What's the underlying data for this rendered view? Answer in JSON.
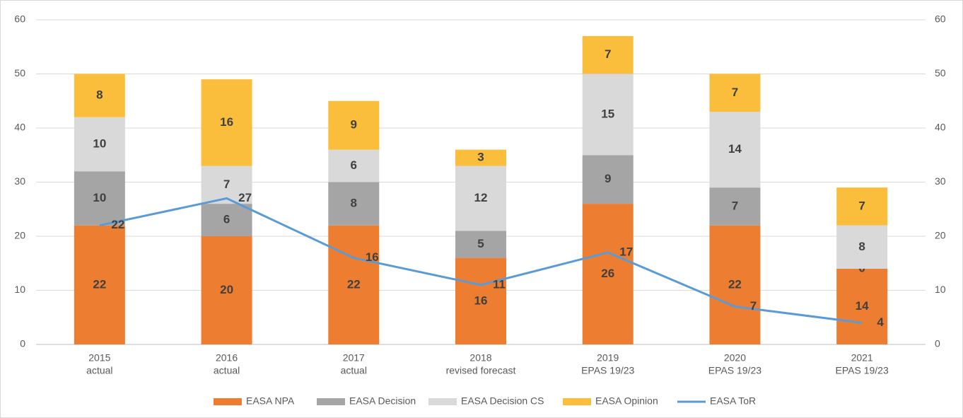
{
  "chart_data": {
    "type": "stacked-bar-line",
    "categories": [
      [
        "2015",
        "actual"
      ],
      [
        "2016",
        "actual"
      ],
      [
        "2017",
        "actual"
      ],
      [
        "2018",
        "revised forecast"
      ],
      [
        "2019",
        "EPAS 19/23"
      ],
      [
        "2020",
        "EPAS 19/23"
      ],
      [
        "2021",
        "EPAS 19/23"
      ]
    ],
    "series": [
      {
        "name": "EASA NPA",
        "color": "#ed7d31",
        "type": "bar",
        "values": [
          22,
          20,
          22,
          16,
          26,
          22,
          14
        ]
      },
      {
        "name": "EASA Decision",
        "color": "#a5a5a5",
        "type": "bar",
        "values": [
          10,
          6,
          8,
          5,
          9,
          7,
          0
        ]
      },
      {
        "name": "EASA Decision CS",
        "color": "#d9d9d9",
        "type": "bar",
        "values": [
          10,
          7,
          6,
          12,
          15,
          14,
          8
        ]
      },
      {
        "name": "EASA Opinion",
        "color": "#fbbd3c",
        "type": "bar",
        "values": [
          8,
          16,
          9,
          3,
          7,
          7,
          7
        ]
      },
      {
        "name": "EASA ToR",
        "color": "#5b9bd5",
        "type": "line",
        "axis": "y2",
        "values": [
          22,
          27,
          16,
          11,
          17,
          7,
          4
        ]
      }
    ],
    "ylim": [
      0,
      60
    ],
    "yticks": [
      0,
      10,
      20,
      30,
      40,
      50,
      60
    ],
    "y2lim": [
      0,
      60
    ],
    "y2ticks": [
      0,
      10,
      20,
      30,
      40,
      50,
      60
    ],
    "grid": true,
    "legend": "bottom"
  }
}
